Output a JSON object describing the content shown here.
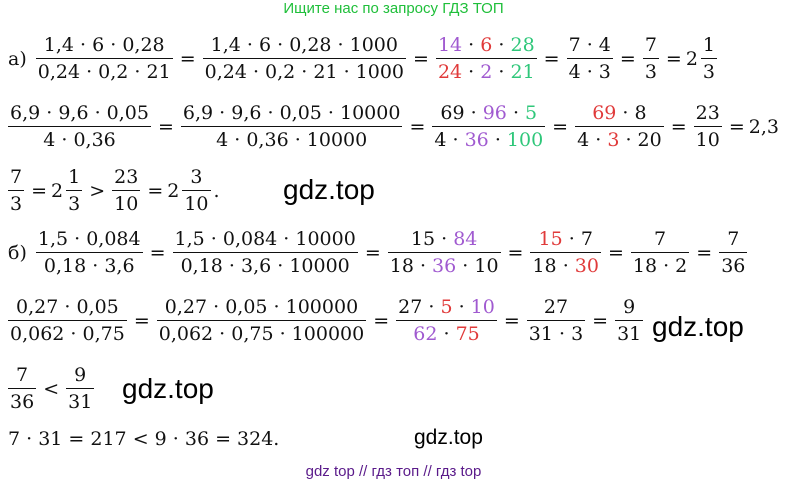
{
  "header": "Ищите нас по запросу ГДЗ ТОП",
  "footer": "gdz top  //  гдз топ  //  гдз top",
  "watermarks": [
    "gdz.top",
    "gdz.top",
    "gdz.top",
    "gdz.top"
  ],
  "a": {
    "label": "а)",
    "f1": {
      "num": "1,4 · 6 · 0,28",
      "den": "0,24 · 0,2 · 21"
    },
    "f2": {
      "num": "1,4 · 6 · 0,28 · 1000",
      "den": "0,24 · 0,2 · 21 · 1000"
    },
    "f3": {
      "num": [
        "14",
        "6",
        "28"
      ],
      "den": [
        "24",
        "2",
        "21"
      ]
    },
    "f4": {
      "num": "7 · 4",
      "den": "4 · 3"
    },
    "f5": {
      "num": "7",
      "den": "3"
    },
    "mixed": {
      "whole": "2",
      "num": "1",
      "den": "3"
    },
    "line2": {
      "f1": {
        "num": "6,9 · 9,6 · 0,05",
        "den": "4 · 0,36"
      },
      "f2": {
        "num": "6,9 · 9,6 · 0,05 · 10000",
        "den": "4 · 0,36 · 10000"
      },
      "f3": {
        "num": [
          "69",
          "96",
          "5"
        ],
        "den": [
          "4",
          "36",
          "100"
        ]
      },
      "f4": {
        "num": [
          "69",
          "8"
        ],
        "den": [
          "4",
          "3",
          "20"
        ]
      },
      "f5": {
        "num": "23",
        "den": "10"
      },
      "result": "2,3"
    },
    "line3": {
      "f1": {
        "num": "7",
        "den": "3"
      },
      "m1": {
        "whole": "2",
        "num": "1",
        "den": "3"
      },
      "f2": {
        "num": "23",
        "den": "10"
      },
      "m2": {
        "whole": "2",
        "num": "3",
        "den": "10"
      }
    }
  },
  "b": {
    "label": "б)",
    "f1": {
      "num": "1,5 · 0,084",
      "den": "0,18 · 3,6"
    },
    "f2": {
      "num": "1,5 · 0,084 · 10000",
      "den": "0,18 · 3,6 · 10000"
    },
    "f3": {
      "num": [
        "15",
        "84"
      ],
      "den": [
        "18",
        "36",
        "10"
      ]
    },
    "f4": {
      "num": [
        "15",
        "7"
      ],
      "den": [
        "18",
        "30"
      ]
    },
    "f5": {
      "num": "7",
      "den": "18 · 2"
    },
    "f6": {
      "num": "7",
      "den": "36"
    },
    "line2": {
      "f1": {
        "num": "0,27 · 0,05",
        "den": "0,062 · 0,75"
      },
      "f2": {
        "num": "0,27 · 0,05 · 100000",
        "den": "0,062 · 0,75 · 100000"
      },
      "f3": {
        "num": [
          "27",
          "5",
          "10"
        ],
        "den": [
          "62",
          "75"
        ]
      },
      "f4": {
        "num": "27",
        "den": "31 · 3"
      },
      "f5": {
        "num": "9",
        "den": "31"
      }
    },
    "line3": {
      "f1": {
        "num": "7",
        "den": "36"
      },
      "f2": {
        "num": "9",
        "den": "31"
      }
    },
    "line4": "7 · 31 = 217 < 9 · 36 = 324."
  }
}
